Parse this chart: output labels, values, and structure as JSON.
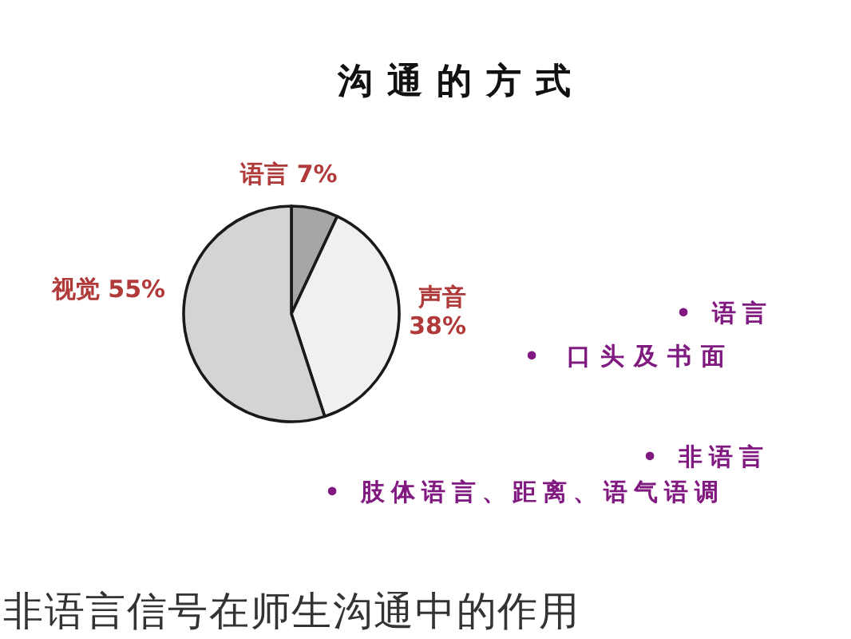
{
  "chart_data": {
    "type": "pie",
    "title": "沟通的方式",
    "categories": [
      "语言",
      "声音",
      "视觉"
    ],
    "values": [
      7,
      38,
      55
    ],
    "colors": [
      "#a6a6a6",
      "#f0f0f0",
      "#d4d4d4"
    ],
    "value_labels": [
      "7%",
      "38%",
      "55%"
    ],
    "annotations": [
      "• 语言",
      "• 口头及书面",
      "• 非语言",
      "• 肢体语言、距离、语气语调",
      "非语言信号在师生沟通中的作用"
    ]
  }
}
